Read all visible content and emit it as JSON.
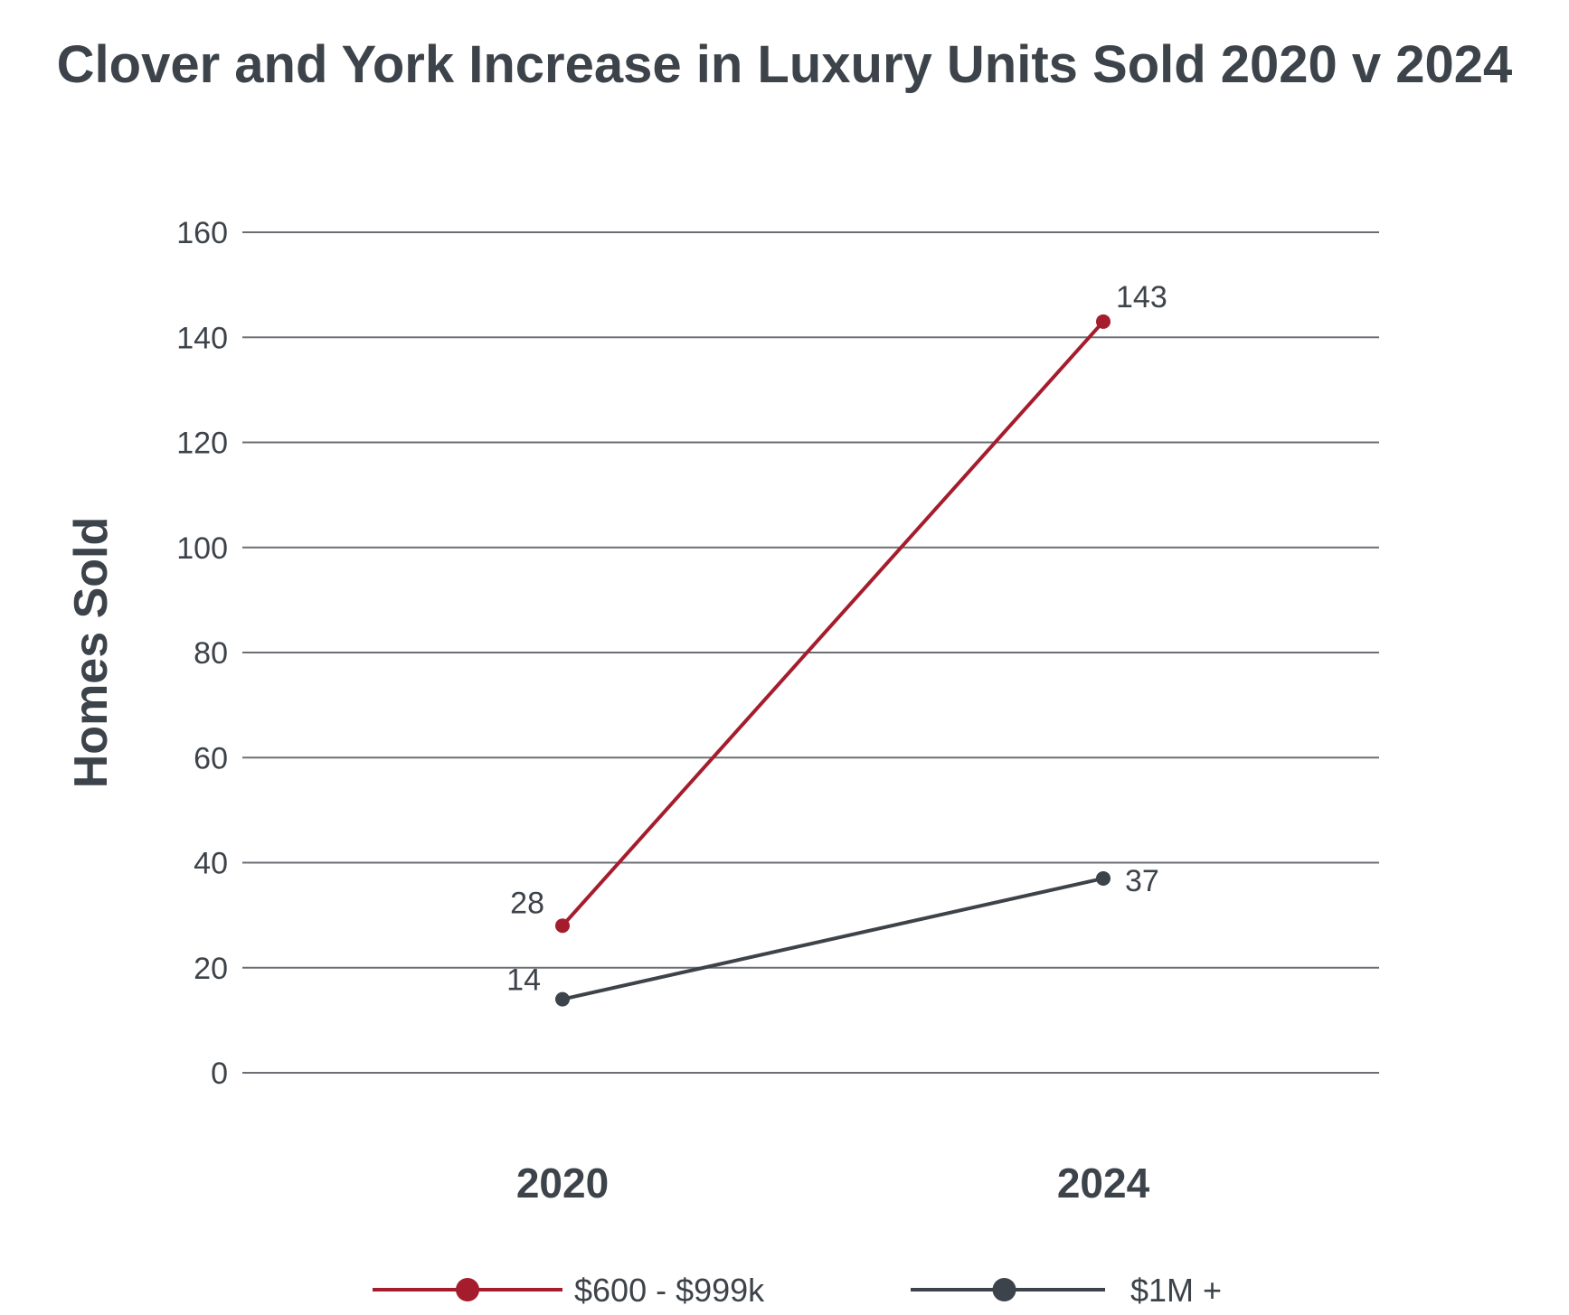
{
  "chart_data": {
    "type": "line",
    "title": "Clover and York Increase in Luxury Units Sold 2020 v 2024",
    "xlabel": "",
    "ylabel": "Homes Sold",
    "categories": [
      "2020",
      "2024"
    ],
    "ylim": [
      0,
      160
    ],
    "yticks": [
      0,
      20,
      40,
      60,
      80,
      100,
      120,
      140,
      160
    ],
    "grid": true,
    "legend_position": "bottom",
    "series": [
      {
        "name": "$600 - $999k",
        "values": [
          28,
          143
        ],
        "labels": [
          "28",
          "143"
        ],
        "color": "#a51d2d"
      },
      {
        "name": "$1M +",
        "values": [
          14,
          37
        ],
        "labels": [
          "14",
          "37"
        ],
        "color": "#3d434a"
      }
    ]
  },
  "colors": {
    "grid": "#6b6f74",
    "text": "#3d434a"
  }
}
